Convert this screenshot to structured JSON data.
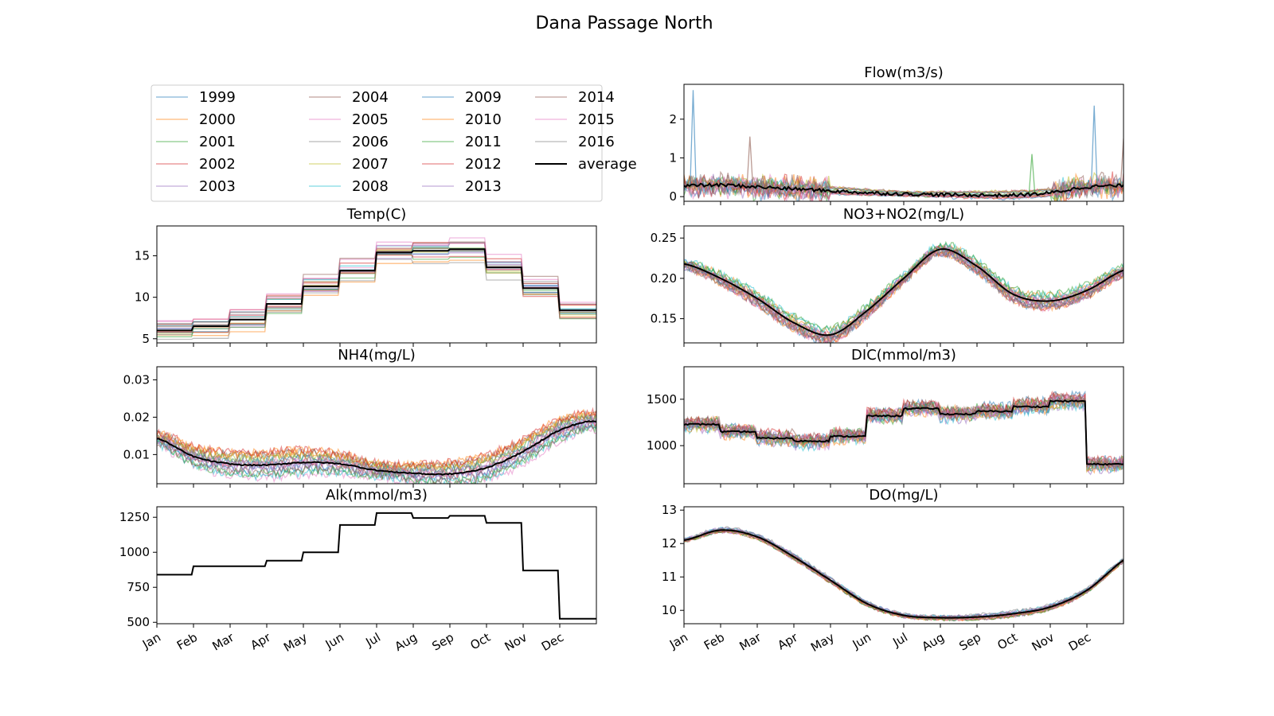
{
  "suptitle": "Dana Passage North",
  "months": [
    "Jan",
    "Feb",
    "Mar",
    "Apr",
    "May",
    "Jun",
    "Jul",
    "Aug",
    "Sep",
    "Oct",
    "Nov",
    "Dec"
  ],
  "years": [
    "1999",
    "2000",
    "2001",
    "2002",
    "2003",
    "2004",
    "2005",
    "2006",
    "2007",
    "2008",
    "2009",
    "2010",
    "2011",
    "2012",
    "2013",
    "2014",
    "2015",
    "2016"
  ],
  "year_colors": [
    "#1f77b4",
    "#ff7f0e",
    "#2ca02c",
    "#d62728",
    "#9467bd",
    "#8c564b",
    "#e377c2",
    "#7f7f7f",
    "#bcbd22",
    "#17becf",
    "#1f77b4",
    "#ff7f0e",
    "#2ca02c",
    "#d62728",
    "#9467bd",
    "#8c564b",
    "#e377c2",
    "#7f7f7f"
  ],
  "average_label": "average",
  "average_color": "#000000",
  "chart_data": [
    {
      "id": "temp",
      "type": "line",
      "title": "Temp(C)",
      "ylim": [
        4.5,
        18.6
      ],
      "yticks": [
        5,
        10,
        15
      ],
      "ytick_labels": [
        "5",
        "10",
        "15"
      ],
      "x_unit": "month",
      "average_style": "monthly-step",
      "average_monthly": [
        6.0,
        6.5,
        7.3,
        9.2,
        11.3,
        13.2,
        15.4,
        15.6,
        15.8,
        13.6,
        11.1,
        8.4,
        6.4,
        6.0
      ],
      "year_spread": 1.3
    },
    {
      "id": "nh4",
      "type": "line",
      "title": "NH4(mg/L)",
      "ylim": [
        0.0022,
        0.0335
      ],
      "yticks": [
        0.01,
        0.02,
        0.03
      ],
      "ytick_labels": [
        "0.01",
        "0.02",
        "0.03"
      ],
      "x_unit": "month",
      "average_style": "smooth",
      "average_monthly": [
        0.0143,
        0.0095,
        0.0075,
        0.0072,
        0.0079,
        0.0075,
        0.0058,
        0.005,
        0.0048,
        0.0065,
        0.0108,
        0.0165,
        0.0188,
        0.0143
      ],
      "year_spread": 0.0035,
      "year_noise": 0.0012
    },
    {
      "id": "alk",
      "type": "line",
      "title": "Alk(mmol/m3)",
      "ylim": [
        490,
        1325
      ],
      "yticks": [
        500,
        750,
        1000,
        1250
      ],
      "ytick_labels": [
        "500",
        "750",
        "1000",
        "1250"
      ],
      "x_unit": "month",
      "average_style": "monthly-step",
      "years_identical": true,
      "average_monthly": [
        840,
        900,
        900,
        940,
        1000,
        1195,
        1280,
        1245,
        1260,
        1210,
        870,
        525,
        525,
        525
      ],
      "year_spread": 0
    },
    {
      "id": "flow",
      "type": "line",
      "title": "Flow(m3/s)",
      "ylim": [
        -0.12,
        2.9
      ],
      "yticks": [
        0,
        1,
        2
      ],
      "ytick_labels": [
        "0",
        "1",
        "2"
      ],
      "x_unit": "month",
      "average_style": "smooth",
      "average_monthly": [
        0.28,
        0.3,
        0.25,
        0.2,
        0.15,
        0.1,
        0.07,
        0.05,
        0.04,
        0.04,
        0.1,
        0.25,
        0.28,
        0.28
      ],
      "year_spread": 0.1,
      "year_noise": 0.35,
      "peaks": [
        [
          0.25,
          2.75
        ],
        [
          1.8,
          1.55
        ],
        [
          11.2,
          2.35
        ],
        [
          12.0,
          1.5
        ],
        [
          9.5,
          1.1
        ]
      ]
    },
    {
      "id": "no3",
      "type": "line",
      "title": "NO3+NO2(mg/L)",
      "ylim": [
        0.12,
        0.265
      ],
      "yticks": [
        0.15,
        0.2,
        0.25
      ],
      "ytick_labels": [
        "0.15",
        "0.20",
        "0.25"
      ],
      "x_unit": "month",
      "average_style": "smooth",
      "average_monthly": [
        0.218,
        0.2,
        0.175,
        0.145,
        0.13,
        0.16,
        0.2,
        0.236,
        0.215,
        0.18,
        0.172,
        0.185,
        0.21,
        0.218
      ],
      "year_spread": 0.008,
      "year_noise": 0.005
    },
    {
      "id": "dic",
      "type": "line",
      "title": "DIC(mmol/m3)",
      "ylim": [
        590,
        1850
      ],
      "yticks": [
        1000,
        1500
      ],
      "ytick_labels": [
        "1000",
        "1500"
      ],
      "x_unit": "month",
      "average_style": "monthly-step",
      "average_monthly": [
        1230,
        1150,
        1080,
        1050,
        1100,
        1320,
        1400,
        1340,
        1370,
        1420,
        1480,
        800,
        770,
        770
      ],
      "year_spread": 40,
      "year_noise": 60
    },
    {
      "id": "do",
      "type": "line",
      "title": "DO(mg/L)",
      "ylim": [
        9.6,
        13.1
      ],
      "yticks": [
        10,
        11,
        12,
        13
      ],
      "ytick_labels": [
        "10",
        "11",
        "12",
        "13"
      ],
      "x_unit": "month",
      "average_style": "smooth",
      "average_monthly": [
        12.1,
        12.4,
        12.2,
        11.6,
        10.9,
        10.2,
        9.85,
        9.78,
        9.8,
        9.9,
        10.1,
        10.6,
        11.5,
        12.1
      ],
      "year_spread": 0.08,
      "year_noise": 0.05
    }
  ]
}
